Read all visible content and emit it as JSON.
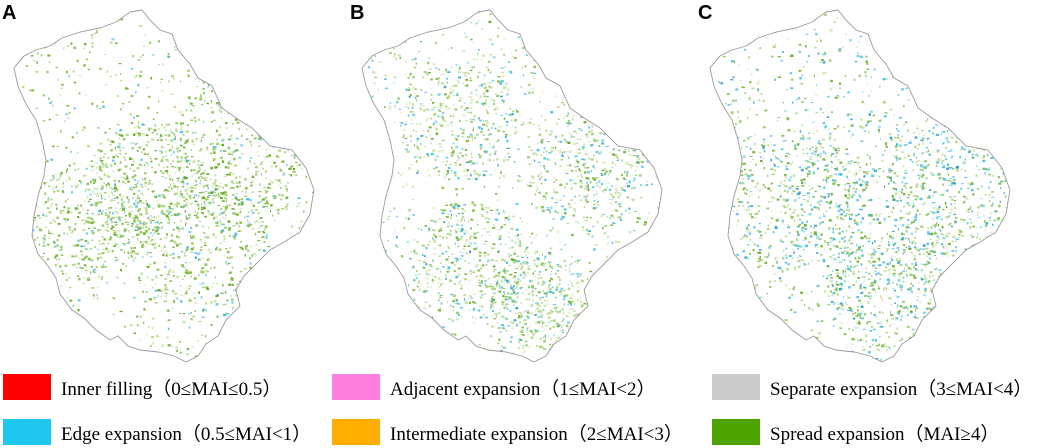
{
  "panels": [
    {
      "label": "A",
      "palette": [
        "#62a81f",
        "#7fbe3a",
        "#a9d27a",
        "#5cc9e6",
        "#2cb6dc",
        "#cfe3b0"
      ],
      "weights": [
        0.34,
        0.22,
        0.22,
        0.08,
        0.05,
        0.09
      ]
    },
    {
      "label": "B",
      "palette": [
        "#62a81f",
        "#a9d27a",
        "#cfe3b0",
        "#3fc0e2",
        "#2a9fc9",
        "#7fbe3a"
      ],
      "weights": [
        0.18,
        0.26,
        0.2,
        0.16,
        0.08,
        0.12
      ]
    },
    {
      "label": "C",
      "palette": [
        "#62a81f",
        "#3fc0e2",
        "#a9d27a",
        "#2a9fc9",
        "#cfe3b0",
        "#7fbe3a"
      ],
      "weights": [
        0.22,
        0.22,
        0.14,
        0.14,
        0.12,
        0.16
      ]
    }
  ],
  "legend": {
    "items": [
      {
        "label": "Inner filling（0≤MAI≤0.5）",
        "color": "#ff0000"
      },
      {
        "label": "Adjacent expansion（1≤MAI<2）",
        "color": "#ff7fe0"
      },
      {
        "label": "Separate expansion（3≤MAI<4）",
        "color": "#cccccc"
      },
      {
        "label": "Edge expansion（0.5≤MAI<1）",
        "color": "#1fc6f0"
      },
      {
        "label": "Intermediate expansion（2≤MAI<3）",
        "color": "#ffae00"
      },
      {
        "label": "Spread expansion（MAI≥4）",
        "color": "#4da400"
      }
    ]
  }
}
